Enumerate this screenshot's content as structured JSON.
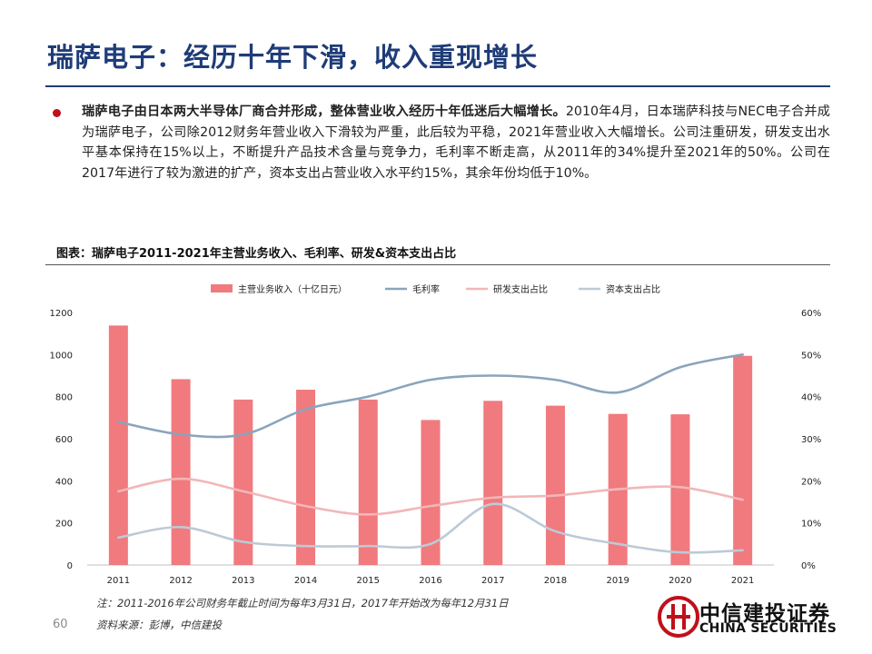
{
  "header": {
    "title": "瑞萨电子：经历十年下滑，收入重现增长"
  },
  "summary": {
    "lead": "瑞萨电子由日本两大半导体厂商合并形成，整体营业收入经历十年低迷后大幅增长。",
    "body": "2010年4月，日本瑞萨科技与NEC电子合并成为瑞萨电子，公司除2012财务年营业收入下滑较为严重，此后较为平稳，2021年营业收入大幅增长。公司注重研发，研发支出水平基本保持在15%以上，不断提升产品技术含量与竞争力，毛利率不断走高，从2011年的34%提升至2021年的50%。公司在2017年进行了较为激进的扩产，资本支出占营业收入水平约15%，其余年份均低于10%。"
  },
  "figure": {
    "caption": "图表：瑞萨电子2011-2021年主营业务收入、毛利率、研发&资本支出占比",
    "note": "注：2011-2016年公司财务年截止时间为每年3月31日，2017年开始改为每年12月31日",
    "source": "资料来源：彭博，中信建投"
  },
  "footer": {
    "page_number": "60",
    "logo_cn": "中信建投证券",
    "logo_en": "CHINA SECURITIES"
  },
  "chart_data": {
    "type": "bar",
    "categories": [
      "2011",
      "2012",
      "2013",
      "2014",
      "2015",
      "2016",
      "2017",
      "2018",
      "2019",
      "2020",
      "2021"
    ],
    "series": [
      {
        "name": "主营业务收入（十亿日元）",
        "type": "bar",
        "axis": "left",
        "color": "#f07a7e",
        "values": [
          1138,
          883,
          786,
          833,
          786,
          689,
          780,
          757,
          718,
          716,
          994
        ]
      },
      {
        "name": "毛利率",
        "type": "line",
        "axis": "right",
        "color": "#8aa4bc",
        "values": [
          0.34,
          0.31,
          0.31,
          0.37,
          0.4,
          0.44,
          0.45,
          0.44,
          0.41,
          0.47,
          0.5
        ]
      },
      {
        "name": "研发支出占比",
        "type": "line",
        "axis": "right",
        "color": "#f2b6b8",
        "values": [
          0.175,
          0.205,
          0.175,
          0.14,
          0.12,
          0.14,
          0.16,
          0.165,
          0.18,
          0.185,
          0.155
        ]
      },
      {
        "name": "资本支出占比",
        "type": "line",
        "axis": "right",
        "color": "#bdcad6",
        "values": [
          0.065,
          0.09,
          0.055,
          0.045,
          0.045,
          0.05,
          0.145,
          0.08,
          0.05,
          0.03,
          0.035
        ]
      }
    ],
    "y_left": {
      "min": 0,
      "max": 1200,
      "ticks": [
        "0",
        "200",
        "400",
        "600",
        "800",
        "1000",
        "1200"
      ]
    },
    "y_right": {
      "min": 0,
      "max": 0.6,
      "ticks": [
        "0%",
        "10%",
        "20%",
        "30%",
        "40%",
        "50%",
        "60%"
      ]
    },
    "legend_position": "top",
    "grid": false
  }
}
